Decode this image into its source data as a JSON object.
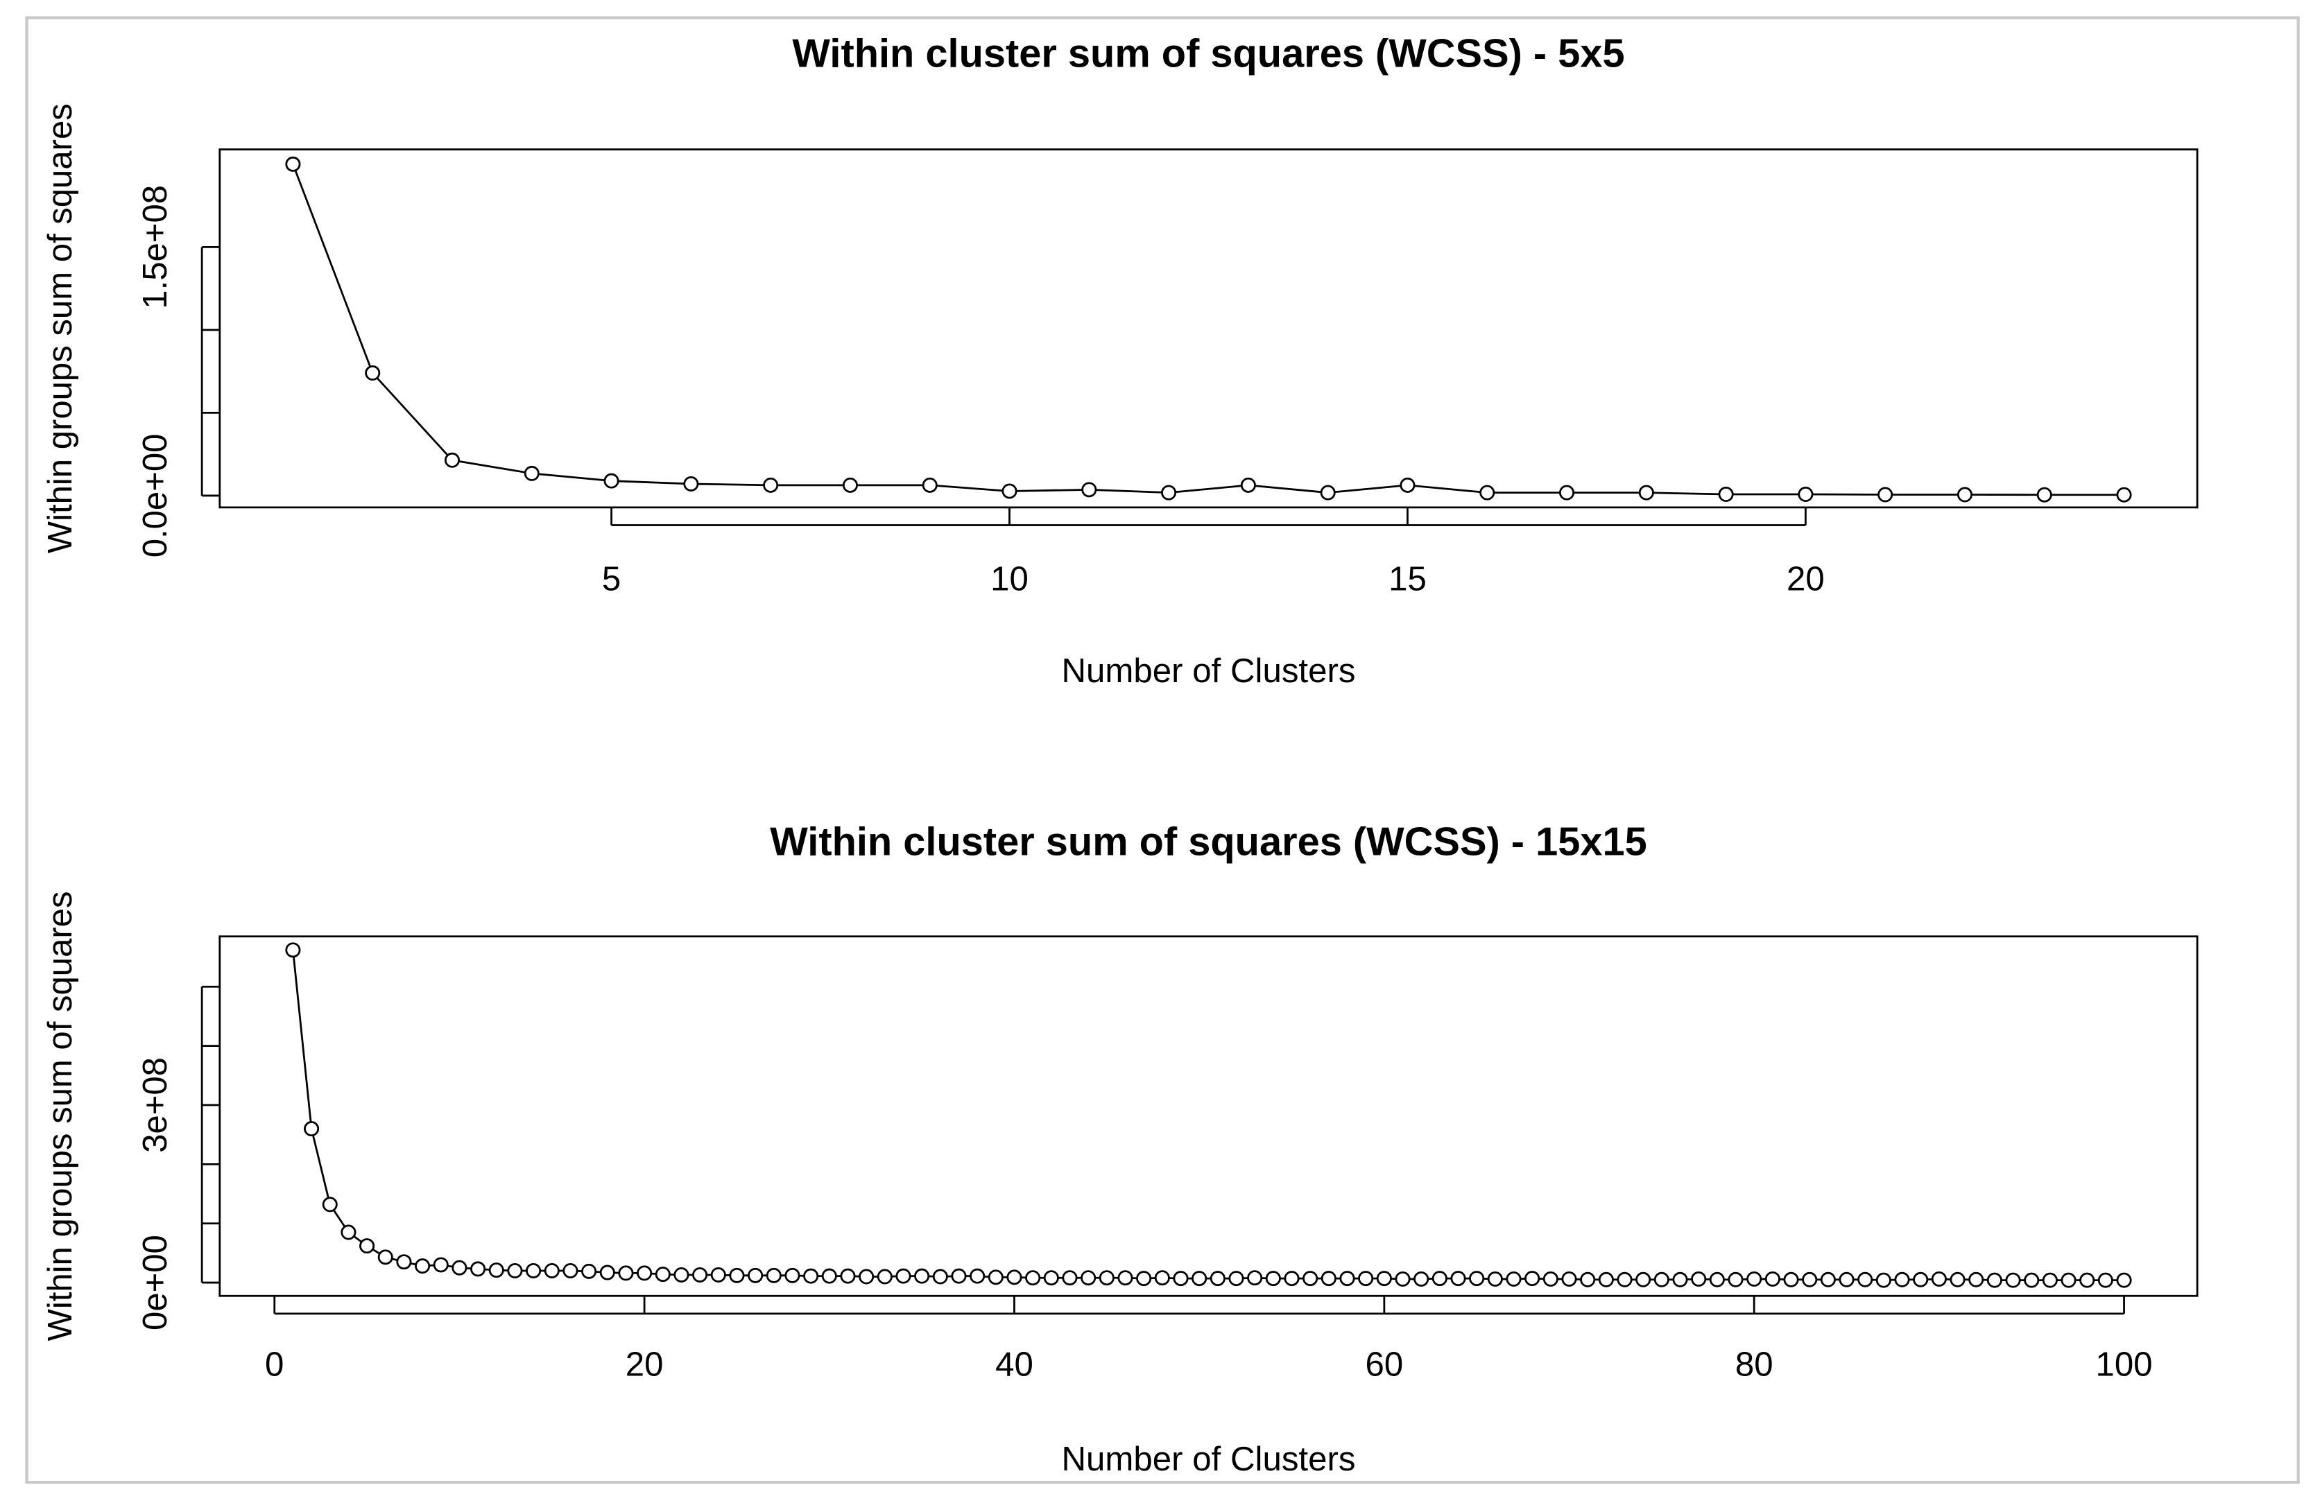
{
  "chart_data": [
    {
      "type": "line",
      "title": "Within cluster sum of squares (WCSS) - 5x5",
      "xlabel": "Number of Clusters",
      "ylabel": "Within groups sum of squares",
      "x": [
        1,
        2,
        3,
        4,
        5,
        6,
        7,
        8,
        9,
        10,
        11,
        12,
        13,
        14,
        15,
        16,
        17,
        18,
        19,
        20,
        21,
        22,
        23,
        24
      ],
      "values": [
        200000000,
        74000000,
        21400000,
        13400000,
        8900000,
        7100000,
        6300000,
        6300000,
        6300000,
        2700000,
        3600000,
        1800000,
        6300000,
        1800000,
        6300000,
        1800000,
        1800000,
        1800000,
        800000,
        800000,
        600000,
        600000,
        500000,
        500000
      ],
      "color": "#000000",
      "xlim": [
        0.08,
        24.92
      ],
      "ylim": [
        -7100000,
        208900000
      ],
      "xticks": [
        5,
        10,
        15,
        20
      ],
      "yticks": [
        {
          "value": 0,
          "label": "0.0e+00"
        },
        {
          "value": 50000000,
          "label": null
        },
        {
          "value": 100000000,
          "label": null
        },
        {
          "value": 150000000,
          "label": "1.5e+08"
        }
      ]
    },
    {
      "type": "line",
      "title": "Within cluster sum of squares (WCSS) - 15x15",
      "xlabel": "Number of Clusters",
      "ylabel": "Within groups sum of squares",
      "x": [
        1,
        2,
        3,
        4,
        5,
        6,
        7,
        8,
        9,
        10,
        11,
        12,
        13,
        14,
        15,
        16,
        17,
        18,
        19,
        20,
        21,
        22,
        23,
        24,
        25,
        26,
        27,
        28,
        29,
        30,
        31,
        32,
        33,
        34,
        35,
        36,
        37,
        38,
        39,
        40,
        41,
        42,
        43,
        44,
        45,
        46,
        47,
        48,
        49,
        50,
        51,
        52,
        53,
        54,
        55,
        56,
        57,
        58,
        59,
        60,
        61,
        62,
        63,
        64,
        65,
        66,
        67,
        68,
        69,
        70,
        71,
        72,
        73,
        74,
        75,
        76,
        77,
        78,
        79,
        80,
        81,
        82,
        83,
        84,
        85,
        86,
        87,
        88,
        89,
        90,
        91,
        92,
        93,
        94,
        95,
        96,
        97,
        98,
        99,
        100
      ],
      "values": [
        562000000,
        260000000,
        132000000,
        85000000,
        62000000,
        43000000,
        35000000,
        28000000,
        30000000,
        25000000,
        23000000,
        21000000,
        20000000,
        20000000,
        20000000,
        20000000,
        19000000,
        17000000,
        16000000,
        16000000,
        14000000,
        13000000,
        13000000,
        13000000,
        12000000,
        12000000,
        12000000,
        12000000,
        11000000,
        11000000,
        11000000,
        10000000,
        10000000,
        11000000,
        11000000,
        10000000,
        11000000,
        11000000,
        9000000,
        9000000,
        8000000,
        8000000,
        8000000,
        8000000,
        8000000,
        8000000,
        7000000,
        8000000,
        7000000,
        7000000,
        7000000,
        7000000,
        8000000,
        7000000,
        7000000,
        7000000,
        7000000,
        7000000,
        7000000,
        7000000,
        6000000,
        6000000,
        7000000,
        7000000,
        7000000,
        6000000,
        6000000,
        7000000,
        6000000,
        6000000,
        5000000,
        5000000,
        5000000,
        5000000,
        5000000,
        5000000,
        6000000,
        5000000,
        5000000,
        6000000,
        6000000,
        5000000,
        5000000,
        5000000,
        5000000,
        5000000,
        4000000,
        5000000,
        5000000,
        6000000,
        5000000,
        5000000,
        4000000,
        4000000,
        4000000,
        4000000,
        4000000,
        4000000,
        4000000,
        4000000
      ],
      "color": "#000000",
      "xlim": [
        -2.96,
        103.96
      ],
      "ylim": [
        -22500000,
        585000000
      ],
      "xticks": [
        0,
        20,
        40,
        60,
        80,
        100
      ],
      "yticks": [
        {
          "value": 0,
          "label": "0e+00"
        },
        {
          "value": 100000000,
          "label": null
        },
        {
          "value": 200000000,
          "label": null
        },
        {
          "value": 300000000,
          "label": "3e+08"
        },
        {
          "value": 400000000,
          "label": null
        },
        {
          "value": 500000000,
          "label": null
        }
      ]
    }
  ]
}
